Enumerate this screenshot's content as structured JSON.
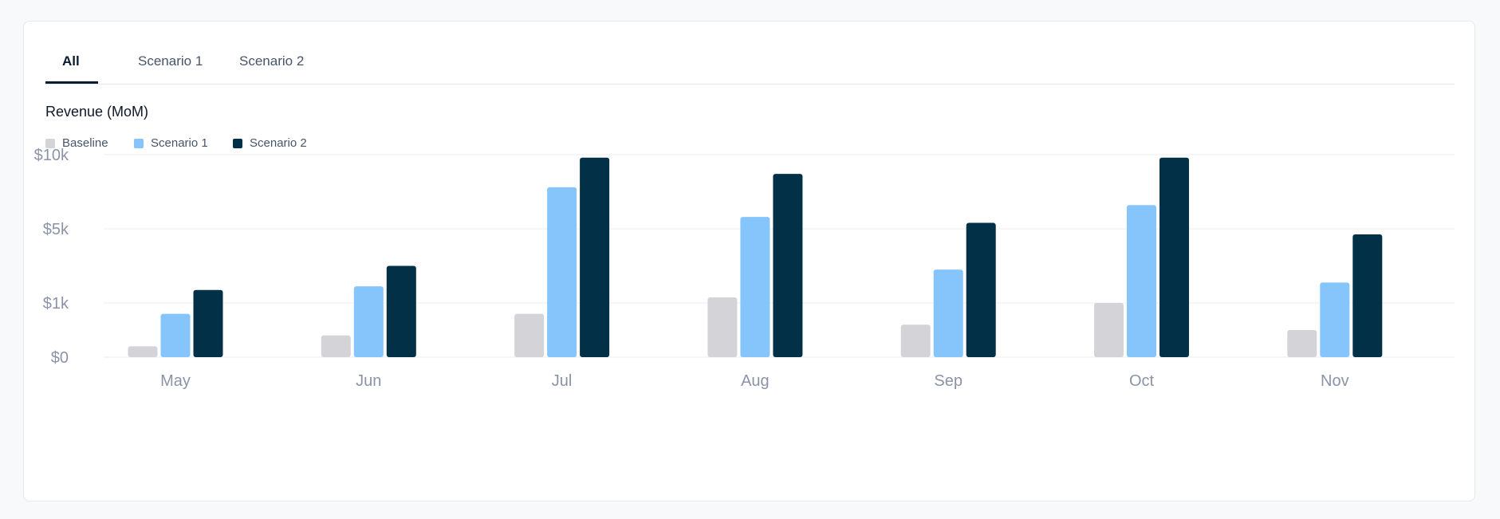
{
  "tabs": [
    {
      "label": "All",
      "active": true
    },
    {
      "label": "Scenario 1",
      "active": false
    },
    {
      "label": "Scenario 2",
      "active": false
    }
  ],
  "chart_data": {
    "type": "bar",
    "title": "Revenue (MoM)",
    "categories": [
      "May",
      "Jun",
      "Jul",
      "Aug",
      "Sep",
      "Oct",
      "Nov"
    ],
    "series": [
      {
        "name": "Baseline",
        "color": "#d4d4d8",
        "values": [
          200,
          400,
          800,
          1300,
          600,
          1000,
          500
        ]
      },
      {
        "name": "Scenario 1",
        "color": "#85c5fc",
        "values": [
          800,
          1900,
          7800,
          5800,
          2800,
          6600,
          2100
        ]
      },
      {
        "name": "Scenario 2",
        "color": "#023047",
        "values": [
          1700,
          3000,
          9800,
          8700,
          5400,
          9800,
          4700
        ]
      }
    ],
    "yticks": [
      {
        "value": 0,
        "label": "$0"
      },
      {
        "value": 1000,
        "label": "$1k"
      },
      {
        "value": 5000,
        "label": "$5k"
      },
      {
        "value": 10000,
        "label": "$10k"
      }
    ],
    "yscale": "nonlinear (evenly spaced ticks at 0, 1k, 5k, 10k)",
    "ylim": [
      0,
      10000
    ],
    "grid": true,
    "legend_position": "top-left"
  }
}
